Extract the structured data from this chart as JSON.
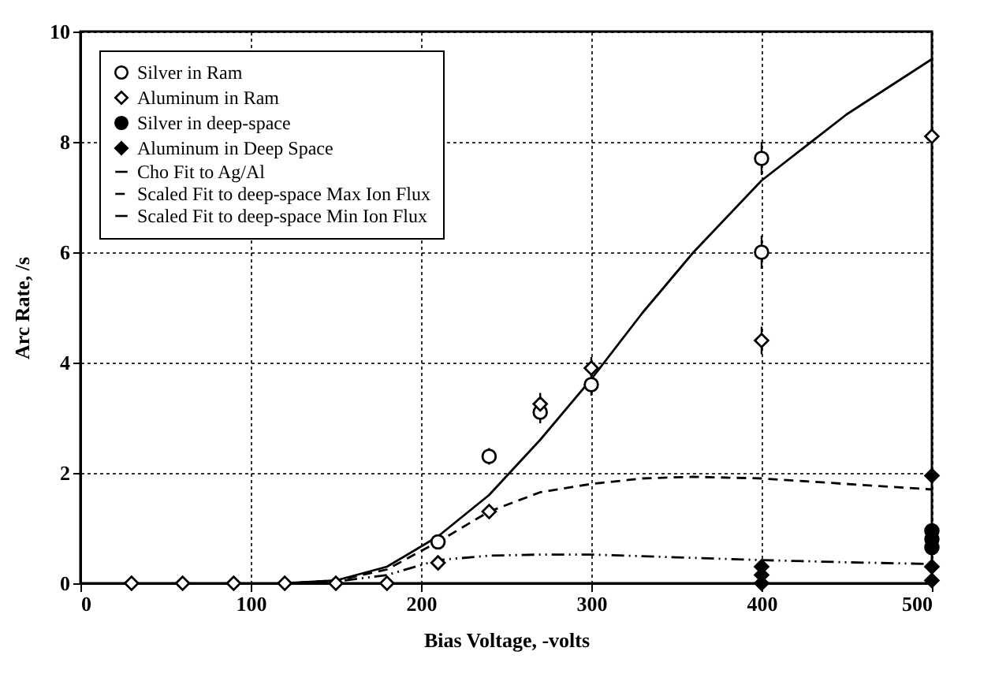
{
  "chart_data": {
    "type": "scatter",
    "xlabel": "Bias Voltage, -volts",
    "ylabel": "Arc Rate, /s",
    "xlim": [
      0,
      500
    ],
    "xticks": [
      0,
      100,
      200,
      300,
      400,
      500
    ],
    "ylim": [
      0,
      10
    ],
    "yticks": [
      0,
      2,
      4,
      6,
      8,
      10
    ],
    "grid": true,
    "legend": "top left",
    "series": [
      {
        "name": "Silver in Ram",
        "marker": "circle",
        "color": "#ffffff",
        "x": [
          210,
          240,
          270,
          300,
          400,
          400
        ],
        "values": [
          0.75,
          2.3,
          3.1,
          3.6,
          7.7,
          6.0
        ],
        "errors": [
          0.1,
          0.15,
          0.2,
          0.2,
          0.3,
          0.3
        ]
      },
      {
        "name": "Aluminum in Ram",
        "marker": "diamond",
        "color": "#ffffff",
        "x": [
          30,
          60,
          90,
          120,
          150,
          180,
          210,
          240,
          270,
          300,
          400,
          500
        ],
        "values": [
          0,
          0,
          0,
          0,
          0,
          0,
          0.37,
          1.3,
          3.25,
          3.9,
          4.4,
          8.1
        ],
        "errors": [
          null,
          null,
          null,
          null,
          null,
          null,
          null,
          0.1,
          0.2,
          0.2,
          0.25,
          null
        ]
      },
      {
        "name": "Silver in deep-space",
        "marker": "circle",
        "color": "#000000",
        "x": [
          500,
          500,
          500
        ],
        "values": [
          0.95,
          0.8,
          0.65
        ]
      },
      {
        "name": "Aluminum in Deep Space",
        "marker": "diamond",
        "color": "#000000",
        "x": [
          400,
          400,
          400,
          500,
          500,
          500
        ],
        "values": [
          0.3,
          0.15,
          0.0,
          1.95,
          0.3,
          0.05
        ]
      },
      {
        "name": "Cho Fit to Ag/Al",
        "type": "line",
        "line_style": "solid",
        "color": "#000000",
        "x": [
          120,
          150,
          180,
          210,
          240,
          270,
          300,
          330,
          360,
          400,
          450,
          500
        ],
        "values": [
          0,
          0.05,
          0.3,
          0.85,
          1.6,
          2.6,
          3.7,
          4.9,
          6.0,
          7.3,
          8.5,
          9.5
        ]
      },
      {
        "name": "Scaled Fit to deep-space Max Ion Flux",
        "type": "line",
        "line_style": "dashed",
        "color": "#000000",
        "x": [
          120,
          150,
          180,
          210,
          240,
          270,
          300,
          330,
          360,
          400,
          450,
          500
        ],
        "values": [
          0,
          0.05,
          0.25,
          0.75,
          1.3,
          1.65,
          1.8,
          1.9,
          1.93,
          1.9,
          1.8,
          1.7
        ]
      },
      {
        "name": "Scaled Fit to deep-space Min Ion Flux",
        "type": "line",
        "line_style": "dashdot",
        "color": "#000000",
        "x": [
          120,
          150,
          180,
          210,
          240,
          270,
          300,
          350,
          400,
          450,
          500
        ],
        "values": [
          0,
          0.03,
          0.15,
          0.42,
          0.5,
          0.52,
          0.52,
          0.47,
          0.42,
          0.38,
          0.35
        ]
      }
    ]
  }
}
